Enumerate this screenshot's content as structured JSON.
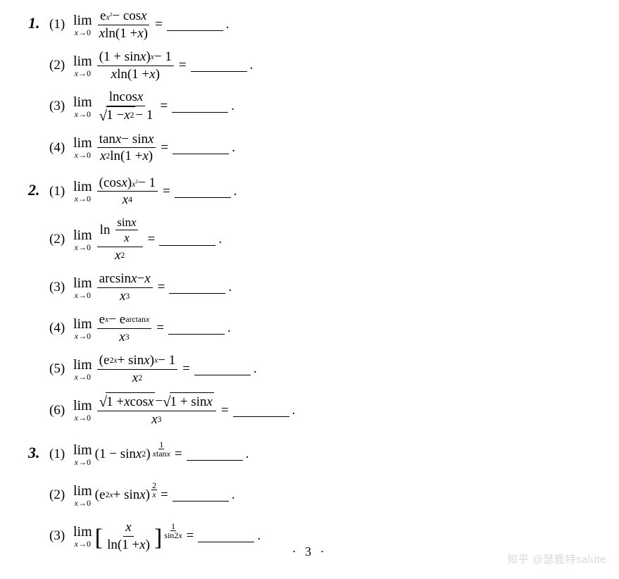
{
  "lim_label": "lim",
  "lim_sub": "x→0",
  "page_number": "· 3 ·",
  "watermark": "知乎  @瑟鹿特salute",
  "problems": [
    {
      "num": "1.",
      "subs": [
        {
          "idx": "(1)",
          "num_html": "e<sup><span class='it'>x</span><sup>2</sup></sup> &minus; cos<span class='it'>x</span>",
          "den_html": "<span class='it'>x</span> ln(1 + <span class='it'>x</span>)"
        },
        {
          "idx": "(2)",
          "num_html": "(1 + sin<span class='it'>x</span>)<sup><span class='it'>x</span></sup> &minus; 1",
          "den_html": "<span class='it'>x</span> ln(1 + <span class='it'>x</span>)"
        },
        {
          "idx": "(3)",
          "num_html": "lncos<span class='it'>x</span>",
          "den_html": "<span class='sqrt'><span class='rad'>1 &minus; <span class='it'>x</span><sup>2</sup></span></span> &minus; 1"
        },
        {
          "idx": "(4)",
          "num_html": "tan<span class='it'>x</span> &minus; sin<span class='it'>x</span>",
          "den_html": "<span class='it'>x</span><sup>2</sup>ln(1 + <span class='it'>x</span>)"
        }
      ]
    },
    {
      "num": "2.",
      "subs": [
        {
          "idx": "(1)",
          "num_html": "(cos<span class='it'>x</span>)<sup><span class='it'>x</span><sup>2</sup></sup> &minus; 1",
          "den_html": "<span class='it'>x</span><sup>4</sup>"
        },
        {
          "idx": "(2)",
          "num_html": "<span style='display:inline-flex;align-items:center;'>ln&nbsp;<span class='frac' style='font-size:17px;'><span class='num' style='padding:0 2px;'>sin<span class='it'>x</span></span><span class='den'><span class='it'>x</span></span></span></span>",
          "den_html": "<span class='it'>x</span><sup>2</sup>",
          "tall": true
        },
        {
          "idx": "(3)",
          "num_html": "arcsin<span class='it'>x</span> &minus; <span class='it'>x</span>",
          "den_html": "<span class='it'>x</span><sup>3</sup>"
        },
        {
          "idx": "(4)",
          "num_html": "e<sup><span class='it'>x</span></sup> &minus; e<sup>arctan<span class='it'>x</span></sup>",
          "den_html": "<span class='it'>x</span><sup>3</sup>"
        },
        {
          "idx": "(5)",
          "num_html": "(e<sup>2<span class='it'>x</span></sup> + sin<span class='it'>x</span>)<sup><span class='it'>x</span></sup> &minus; 1",
          "den_html": "<span class='it'>x</span><sup>2</sup>"
        },
        {
          "idx": "(6)",
          "num_html": "<span class='sqrt'><span class='rad'>1 + <span class='it'>x</span> cos<span class='it'>x</span></span></span> &minus; <span class='sqrt'><span class='rad'>1 + sin<span class='it'>x</span></span></span>",
          "den_html": "<span class='it'>x</span><sup>3</sup>"
        }
      ]
    },
    {
      "num": "3.",
      "subs_special": [
        {
          "idx": "(1)",
          "base_html": "(1 &minus; sin<span class='it'>x</span><sup>2</sup>)",
          "exp_n": "1",
          "exp_d": "<span class='it'>x</span>tan<span class='it'>x</span>"
        },
        {
          "idx": "(2)",
          "base_html": "(e<sup>2<span class='it'>x</span></sup> + sin<span class='it'>x</span>)",
          "exp_n": "2",
          "exp_d": "<span class='it'>x</span>"
        },
        {
          "idx": "(3)",
          "base_html": "<span class='br-l'>[</span><span class='frac'><span class='num'><span class='it'>x</span></span><span class='den'>ln(1 + <span class='it'>x</span>)</span></span><span class='br-r'>]</span>",
          "exp_n": "1",
          "exp_d": "sin2<span class='it'>x</span>"
        }
      ]
    }
  ]
}
